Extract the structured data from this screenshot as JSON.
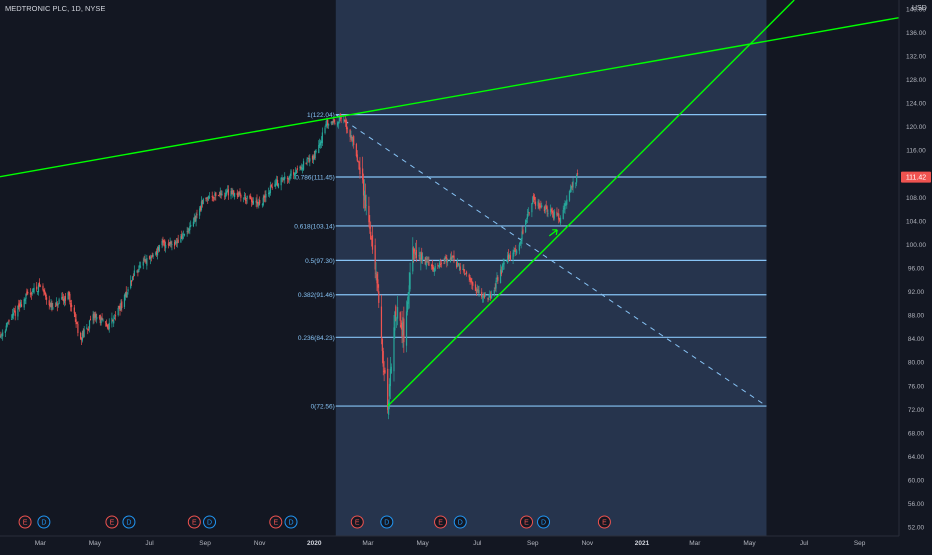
{
  "header": {
    "symbol_label": "MEDTRONIC PLC, 1D, NYSE"
  },
  "price_axis": {
    "currency": "USD",
    "ticks": [
      52,
      56,
      60,
      64,
      68,
      72,
      76,
      80,
      84,
      88,
      92,
      96,
      100,
      104,
      108,
      112,
      116,
      120,
      124,
      128,
      132,
      136,
      140
    ],
    "tick_labels": [
      "52.00",
      "56.00",
      "60.00",
      "64.00",
      "68.00",
      "72.00",
      "76.00",
      "80.00",
      "84.00",
      "88.00",
      "92.00",
      "96.00",
      "100.00",
      "104.00",
      "108.00",
      "112.00",
      "116.00",
      "120.00",
      "124.00",
      "128.00",
      "132.00",
      "136.00",
      "140.00"
    ],
    "last_price_label": "111.42"
  },
  "time_axis": {
    "labels": [
      "Mar",
      "May",
      "Jul",
      "Sep",
      "Nov",
      "2020",
      "Mar",
      "May",
      "Jul",
      "Sep",
      "Nov",
      "2021",
      "Mar",
      "May",
      "Jul",
      "Sep"
    ],
    "bold_labels": [
      "2020",
      "2021"
    ]
  },
  "chart_data": {
    "type": "candlestick",
    "title": "MEDTRONIC PLC, 1D, NYSE",
    "y_range": [
      50.5,
      141.5
    ],
    "x_range": [
      "2019-01-15",
      "2021-10-15"
    ],
    "grid": false,
    "last_price": 111.42,
    "colors": {
      "background": "#131722",
      "up_candle": "#26a69a",
      "down_candle": "#ef5350",
      "trend_line": "#00ff00",
      "fib_line": "#87c3f5",
      "fib_zone": "#2a3a55",
      "axis_text": "#b2b5be",
      "price_tag": "#ef5350"
    },
    "close_path": [
      [
        "2019-01-15",
        84.5
      ],
      [
        "2019-02-01",
        88.5
      ],
      [
        "2019-02-15",
        91.5
      ],
      [
        "2019-03-01",
        93.0
      ],
      [
        "2019-03-15",
        89.0
      ],
      [
        "2019-04-01",
        91.5
      ],
      [
        "2019-04-15",
        84.0
      ],
      [
        "2019-05-01",
        88.0
      ],
      [
        "2019-05-15",
        86.0
      ],
      [
        "2019-06-01",
        90.0
      ],
      [
        "2019-06-15",
        95.5
      ],
      [
        "2019-07-01",
        97.5
      ],
      [
        "2019-07-15",
        100.0
      ],
      [
        "2019-08-01",
        100.5
      ],
      [
        "2019-08-15",
        102.5
      ],
      [
        "2019-09-01",
        108.0
      ],
      [
        "2019-09-15",
        108.5
      ],
      [
        "2019-10-01",
        109.0
      ],
      [
        "2019-10-15",
        108.0
      ],
      [
        "2019-11-01",
        106.5
      ],
      [
        "2019-11-15",
        110.0
      ],
      [
        "2019-12-01",
        111.5
      ],
      [
        "2019-12-15",
        113.0
      ],
      [
        "2020-01-01",
        115.0
      ],
      [
        "2020-01-15",
        120.5
      ],
      [
        "2020-02-01",
        121.5
      ],
      [
        "2020-02-15",
        117.0
      ],
      [
        "2020-03-01",
        105.0
      ],
      [
        "2020-03-10",
        95.0
      ],
      [
        "2020-03-18",
        80.0
      ],
      [
        "2020-03-23",
        72.6
      ],
      [
        "2020-04-01",
        89.0
      ],
      [
        "2020-04-10",
        85.0
      ],
      [
        "2020-04-20",
        98.0
      ],
      [
        "2020-05-01",
        97.5
      ],
      [
        "2020-05-15",
        96.0
      ],
      [
        "2020-06-01",
        98.0
      ],
      [
        "2020-06-15",
        95.5
      ],
      [
        "2020-07-01",
        92.0
      ],
      [
        "2020-07-15",
        91.0
      ],
      [
        "2020-08-01",
        97.0
      ],
      [
        "2020-08-15",
        99.5
      ],
      [
        "2020-09-01",
        107.5
      ],
      [
        "2020-09-15",
        106.0
      ],
      [
        "2020-10-01",
        104.5
      ],
      [
        "2020-10-10",
        108.5
      ],
      [
        "2020-10-21",
        111.42
      ]
    ],
    "fibonacci_retracement": {
      "start_date": "2020-01-25",
      "end_date": "2021-05-20",
      "levels": [
        {
          "ratio": 1,
          "price": 122.04,
          "label": "1(122.04)"
        },
        {
          "ratio": 0.786,
          "price": 111.45,
          "label": "0.786(111.45)"
        },
        {
          "ratio": 0.618,
          "price": 103.14,
          "label": "0.618(103.14)"
        },
        {
          "ratio": 0.5,
          "price": 97.3,
          "label": "0.5(97.30)"
        },
        {
          "ratio": 0.382,
          "price": 91.46,
          "label": "0.382(91.46)"
        },
        {
          "ratio": 0.236,
          "price": 84.23,
          "label": "0.236(84.23)"
        },
        {
          "ratio": 0,
          "price": 72.56,
          "label": "0(72.56)"
        }
      ],
      "diagonal": [
        [
          "2020-01-25",
          122.04
        ],
        [
          "2021-05-20",
          72.56
        ]
      ]
    },
    "trend_lines": [
      {
        "from": [
          "2019-01-15",
          111.5
        ],
        "to": [
          "2021-10-15",
          138.5
        ]
      },
      {
        "from": [
          "2020-03-23",
          72.56
        ],
        "to": [
          "2021-06-20",
          141.5
        ]
      }
    ],
    "events": [
      {
        "date": "2019-02-12",
        "type": "E"
      },
      {
        "date": "2019-03-05",
        "type": "D"
      },
      {
        "date": "2019-05-20",
        "type": "E"
      },
      {
        "date": "2019-06-08",
        "type": "D"
      },
      {
        "date": "2019-08-20",
        "type": "E"
      },
      {
        "date": "2019-09-06",
        "type": "D"
      },
      {
        "date": "2019-11-19",
        "type": "E"
      },
      {
        "date": "2019-12-06",
        "type": "D"
      },
      {
        "date": "2020-02-18",
        "type": "E"
      },
      {
        "date": "2020-03-22",
        "type": "D"
      },
      {
        "date": "2020-05-21",
        "type": "E"
      },
      {
        "date": "2020-06-12",
        "type": "D"
      },
      {
        "date": "2020-08-25",
        "type": "E"
      },
      {
        "date": "2020-09-13",
        "type": "D"
      },
      {
        "date": "2020-11-20",
        "type": "E"
      }
    ]
  }
}
